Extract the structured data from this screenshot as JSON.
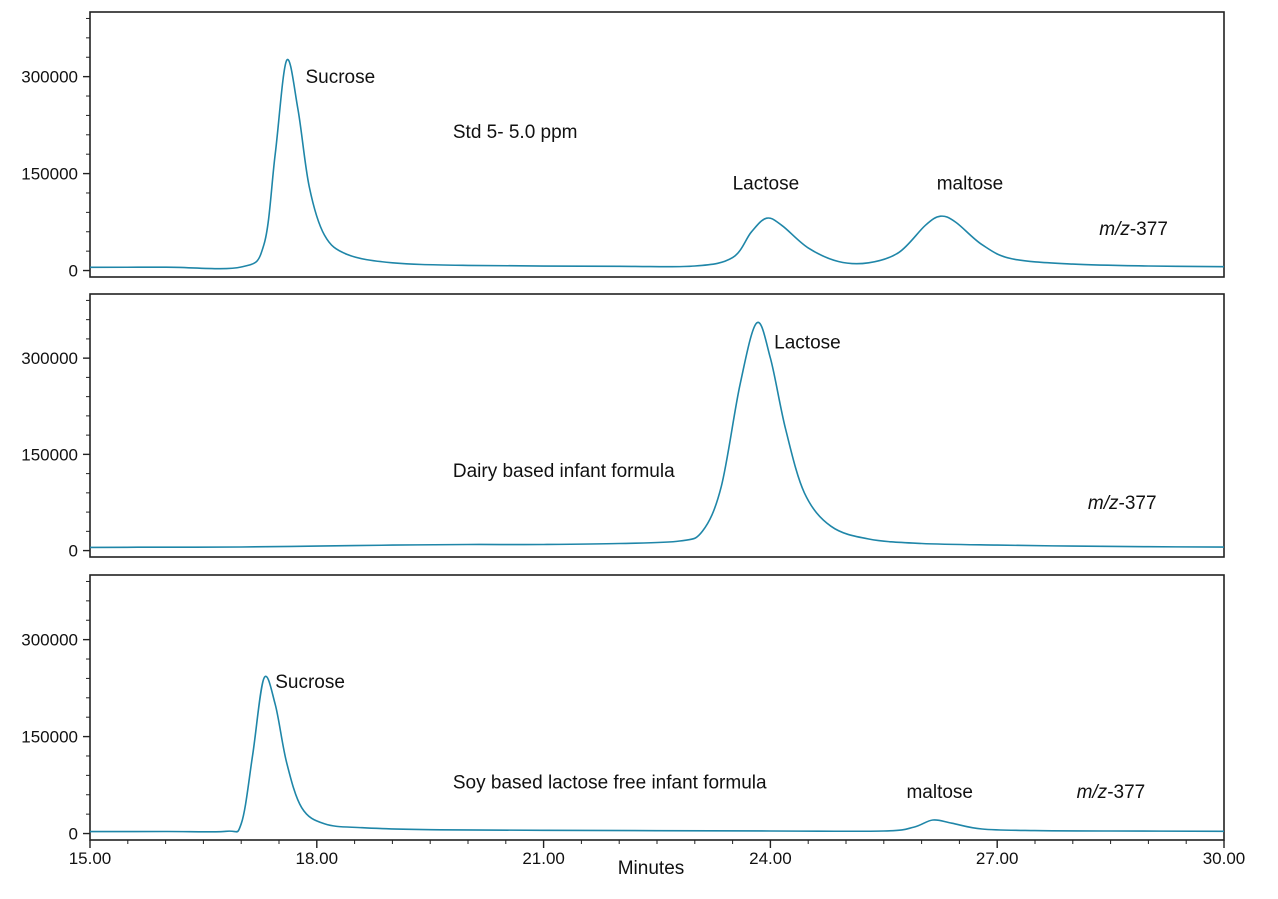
{
  "chart_data": {
    "type": "line",
    "line_color": "#1f86a8",
    "x_axis": {
      "label": "Minutes",
      "range": [
        15.0,
        30.0
      ],
      "ticks": [
        15.0,
        18.0,
        21.0,
        24.0,
        27.0,
        30.0
      ],
      "tick_labels": [
        "15.00",
        "18.00",
        "21.00",
        "24.00",
        "27.00",
        "30.00"
      ]
    },
    "panels": [
      {
        "ylim": [
          -10000,
          400000
        ],
        "y_ticks": [
          0,
          150000,
          300000
        ],
        "y_tick_labels": [
          "0",
          "150000",
          "300000"
        ],
        "grid": false,
        "baseline": 5000,
        "series_points": [
          [
            15.0,
            5000
          ],
          [
            16.0,
            5200
          ],
          [
            17.0,
            5500
          ],
          [
            17.3,
            40000
          ],
          [
            17.45,
            180000
          ],
          [
            17.6,
            325000
          ],
          [
            17.75,
            250000
          ],
          [
            17.9,
            130000
          ],
          [
            18.1,
            55000
          ],
          [
            18.4,
            25000
          ],
          [
            19.0,
            12000
          ],
          [
            20.0,
            8000
          ],
          [
            22.0,
            6500
          ],
          [
            23.0,
            7000
          ],
          [
            23.5,
            20000
          ],
          [
            23.75,
            60000
          ],
          [
            23.95,
            81000
          ],
          [
            24.15,
            70000
          ],
          [
            24.5,
            35000
          ],
          [
            24.9,
            14000
          ],
          [
            25.3,
            12000
          ],
          [
            25.7,
            28000
          ],
          [
            26.05,
            70000
          ],
          [
            26.25,
            84000
          ],
          [
            26.45,
            75000
          ],
          [
            26.8,
            40000
          ],
          [
            27.2,
            18000
          ],
          [
            28.0,
            10000
          ],
          [
            29.0,
            7000
          ],
          [
            30.0,
            6000
          ]
        ],
        "annotations": [
          {
            "text": "Sucrose",
            "x": 17.85,
            "y": 290000
          },
          {
            "text": "Std 5-  5.0 ppm",
            "x": 19.8,
            "y": 205000
          },
          {
            "text": "Lactose",
            "x": 23.5,
            "y": 125000
          },
          {
            "text": "maltose",
            "x": 26.2,
            "y": 125000
          },
          {
            "text": "m/z-377",
            "x": 28.35,
            "y": 55000,
            "italic_part": "m/z",
            "rest": "-377"
          }
        ]
      },
      {
        "ylim": [
          -10000,
          400000
        ],
        "y_ticks": [
          0,
          150000,
          300000
        ],
        "y_tick_labels": [
          "0",
          "150000",
          "300000"
        ],
        "grid": false,
        "baseline": 5000,
        "series_points": [
          [
            15.0,
            5000
          ],
          [
            16.0,
            5300
          ],
          [
            17.0,
            5600
          ],
          [
            18.0,
            7000
          ],
          [
            19.0,
            8500
          ],
          [
            20.0,
            9500
          ],
          [
            21.0,
            9500
          ],
          [
            22.0,
            11000
          ],
          [
            22.8,
            15000
          ],
          [
            23.1,
            30000
          ],
          [
            23.35,
            100000
          ],
          [
            23.6,
            260000
          ],
          [
            23.82,
            355000
          ],
          [
            24.0,
            300000
          ],
          [
            24.2,
            190000
          ],
          [
            24.45,
            90000
          ],
          [
            24.8,
            38000
          ],
          [
            25.3,
            18000
          ],
          [
            26.0,
            11000
          ],
          [
            27.0,
            8500
          ],
          [
            28.0,
            7000
          ],
          [
            29.0,
            6000
          ],
          [
            30.0,
            5500
          ]
        ],
        "annotations": [
          {
            "text": "Lactose",
            "x": 24.05,
            "y": 315000
          },
          {
            "text": "Dairy based infant formula",
            "x": 19.8,
            "y": 115000
          },
          {
            "text": "m/z-377",
            "x": 28.2,
            "y": 65000,
            "italic_part": "m/z",
            "rest": "-377"
          }
        ]
      },
      {
        "ylim": [
          -10000,
          400000
        ],
        "y_ticks": [
          0,
          150000,
          300000
        ],
        "y_tick_labels": [
          "0",
          "150000",
          "300000"
        ],
        "grid": false,
        "baseline": 3000,
        "series_points": [
          [
            15.0,
            3000
          ],
          [
            16.0,
            3200
          ],
          [
            16.8,
            3500
          ],
          [
            17.0,
            15000
          ],
          [
            17.15,
            120000
          ],
          [
            17.3,
            240000
          ],
          [
            17.45,
            200000
          ],
          [
            17.6,
            110000
          ],
          [
            17.8,
            40000
          ],
          [
            18.1,
            15000
          ],
          [
            18.6,
            9000
          ],
          [
            19.5,
            6000
          ],
          [
            21.0,
            5000
          ],
          [
            24.0,
            4000
          ],
          [
            25.5,
            4000
          ],
          [
            25.9,
            10000
          ],
          [
            26.15,
            21000
          ],
          [
            26.4,
            16000
          ],
          [
            26.8,
            7000
          ],
          [
            27.5,
            4500
          ],
          [
            28.5,
            4000
          ],
          [
            30.0,
            3500
          ]
        ],
        "annotations": [
          {
            "text": "Sucrose",
            "x": 17.45,
            "y": 225000
          },
          {
            "text": "Soy based lactose free infant formula",
            "x": 19.8,
            "y": 70000
          },
          {
            "text": "maltose",
            "x": 25.8,
            "y": 55000
          },
          {
            "text": "m/z-377",
            "x": 28.05,
            "y": 55000,
            "italic_part": "m/z",
            "rest": "-377"
          }
        ]
      }
    ]
  }
}
